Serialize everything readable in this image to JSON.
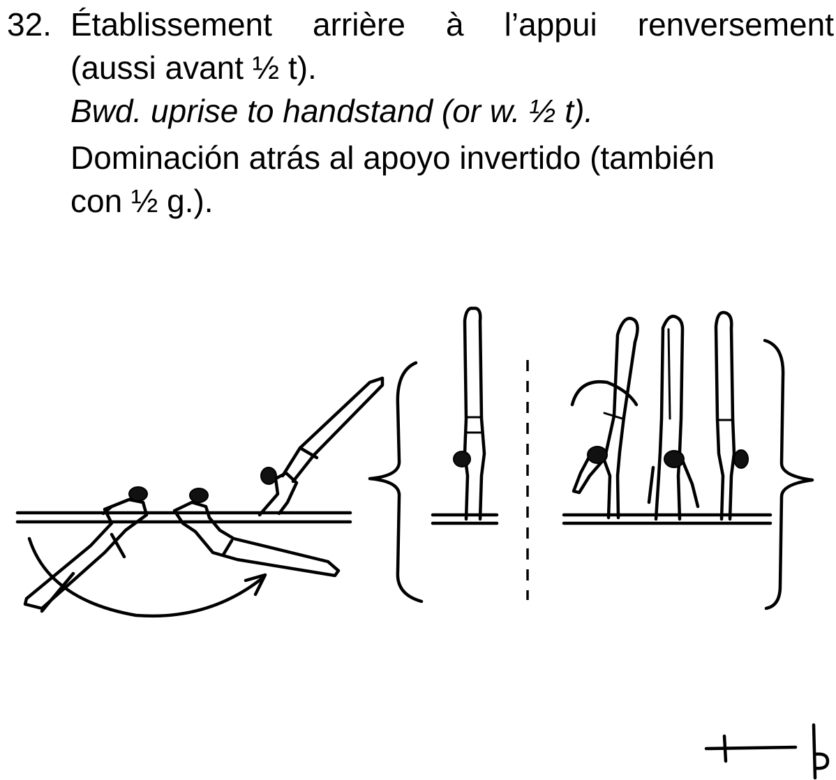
{
  "element": {
    "number": "32.",
    "french": {
      "line1": "Établissement arrière à l’appui renversement",
      "line2": "(aussi avant ½ t)."
    },
    "english": "Bwd. uprise to handstand (or w. ½ t).",
    "spanish": {
      "line1": "Dominación atrás al apoyo invertido (también",
      "line2": "con ½ g.)."
    }
  },
  "icons": {
    "illustration": "gymnast-parallel-bars-sequence",
    "symbol": "element-notation-symbol"
  }
}
